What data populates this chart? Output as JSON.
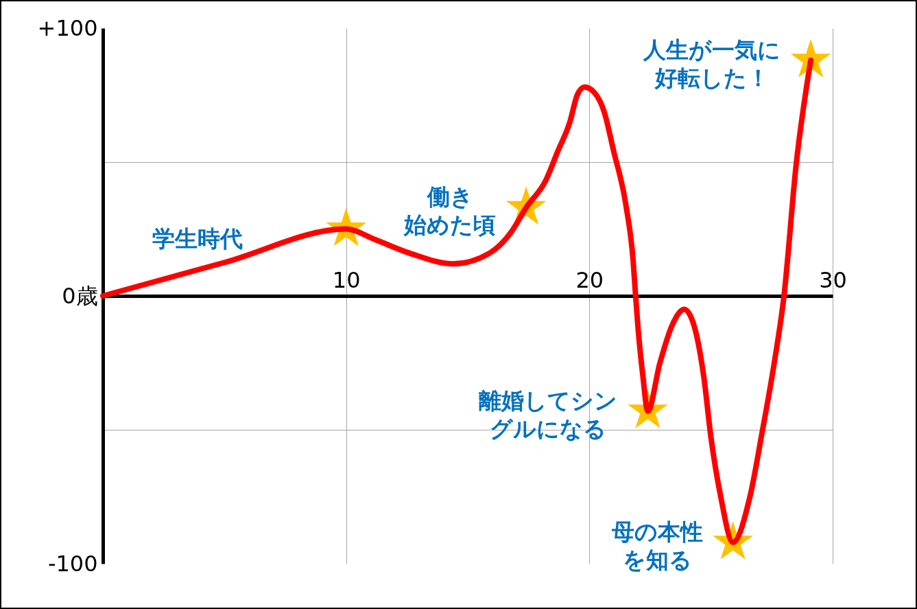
{
  "chart_data": {
    "type": "line",
    "xlim": [
      0,
      30
    ],
    "xticks": [
      10,
      20,
      30
    ],
    "ylim": [
      -100,
      100
    ],
    "yticks": [
      {
        "value": 100,
        "label": "+100"
      },
      {
        "value": 50,
        "label": null
      },
      {
        "value": 0,
        "label": "0歳"
      },
      {
        "value": -50,
        "label": null
      },
      {
        "value": -100,
        "label": "-100"
      }
    ],
    "grid": true,
    "series": [
      {
        "color": "#ff0000",
        "x": [
          0,
          5,
          10,
          11.2,
          12.6,
          14.4,
          15.9,
          16.8,
          17.4,
          18.2,
          18.7,
          19.2,
          19.5,
          19.8,
          20.2,
          20.6,
          21,
          21.5,
          21.8,
          21.9,
          22,
          22.2,
          22.4,
          22.9,
          23.4,
          23.9,
          24.3,
          24.7,
          25,
          25.4,
          25.9,
          26.6,
          27.1,
          27.6,
          28,
          28.5,
          29.1
        ],
        "values": [
          0,
          12.5,
          25,
          21,
          16,
          12,
          16,
          24,
          33,
          43,
          54,
          65,
          75,
          78,
          76,
          69,
          54,
          34,
          13,
          0,
          -12,
          -30,
          -43,
          -25,
          -11,
          -5,
          -11,
          -30,
          -53,
          -75,
          -92,
          -75,
          -51,
          -25,
          0,
          49,
          88
        ]
      },
      {
        "type": "scatter",
        "marker": "star",
        "color": "#ffc000",
        "x": [
          10,
          17.4,
          22.4,
          25.9,
          29.1
        ],
        "values": [
          25,
          33,
          -43,
          -92,
          88
        ]
      }
    ],
    "annotations": [
      {
        "text": "学生時代",
        "x": 7,
        "y": 17.5
      },
      {
        "text": "働き始めた頃",
        "x": 17.4,
        "y": 33
      },
      {
        "text": "離婚してシングルになる",
        "x": 22.4,
        "y": -43
      },
      {
        "text": "母の本性を知る",
        "x": 25.9,
        "y": -92
      },
      {
        "text": "人生が一気に好転した！",
        "x": 29.1,
        "y": 88
      }
    ]
  }
}
